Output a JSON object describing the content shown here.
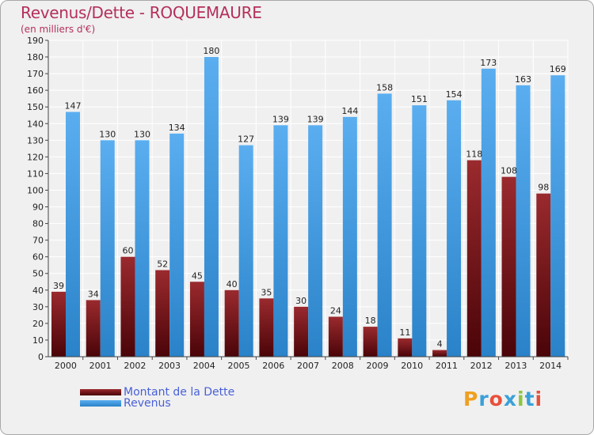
{
  "title": "Revenus/Dette - ROQUEMAURE",
  "subtitle": "(en milliers d'€)",
  "legend": [
    {
      "label": "Montant de la Dette",
      "color": "#7a1a1e"
    },
    {
      "label": "Revenus",
      "color": "#4aa3e6"
    }
  ],
  "logo": {
    "text": "Proxiti",
    "letters": [
      "P",
      "r",
      "o",
      "x",
      "i",
      "t",
      "i"
    ],
    "colors": [
      "#f0a020",
      "#3aa0d8",
      "#e8503a",
      "#3aa0d8",
      "#8cc63e",
      "#3aa0d8",
      "#e8503a"
    ]
  },
  "chart_data": {
    "type": "bar",
    "title": "Revenus/Dette - ROQUEMAURE",
    "ylabel": "(en milliers d'€)",
    "xlabel": "",
    "categories": [
      "2000",
      "2001",
      "2002",
      "2003",
      "2004",
      "2005",
      "2006",
      "2007",
      "2008",
      "2009",
      "2010",
      "2011",
      "2012",
      "2013",
      "2014"
    ],
    "series": [
      {
        "name": "Montant de la Dette",
        "color": "#7a1a1e",
        "values": [
          39,
          34,
          60,
          52,
          45,
          40,
          35,
          30,
          24,
          18,
          11,
          4,
          118,
          108,
          98
        ]
      },
      {
        "name": "Revenus",
        "color": "#4aa3e6",
        "values": [
          147,
          130,
          130,
          134,
          180,
          127,
          139,
          139,
          144,
          158,
          151,
          154,
          173,
          163,
          169
        ]
      }
    ],
    "ylim": [
      0,
      190
    ],
    "ytick_step": 10,
    "grid": true,
    "legend_position": "bottom-left"
  }
}
